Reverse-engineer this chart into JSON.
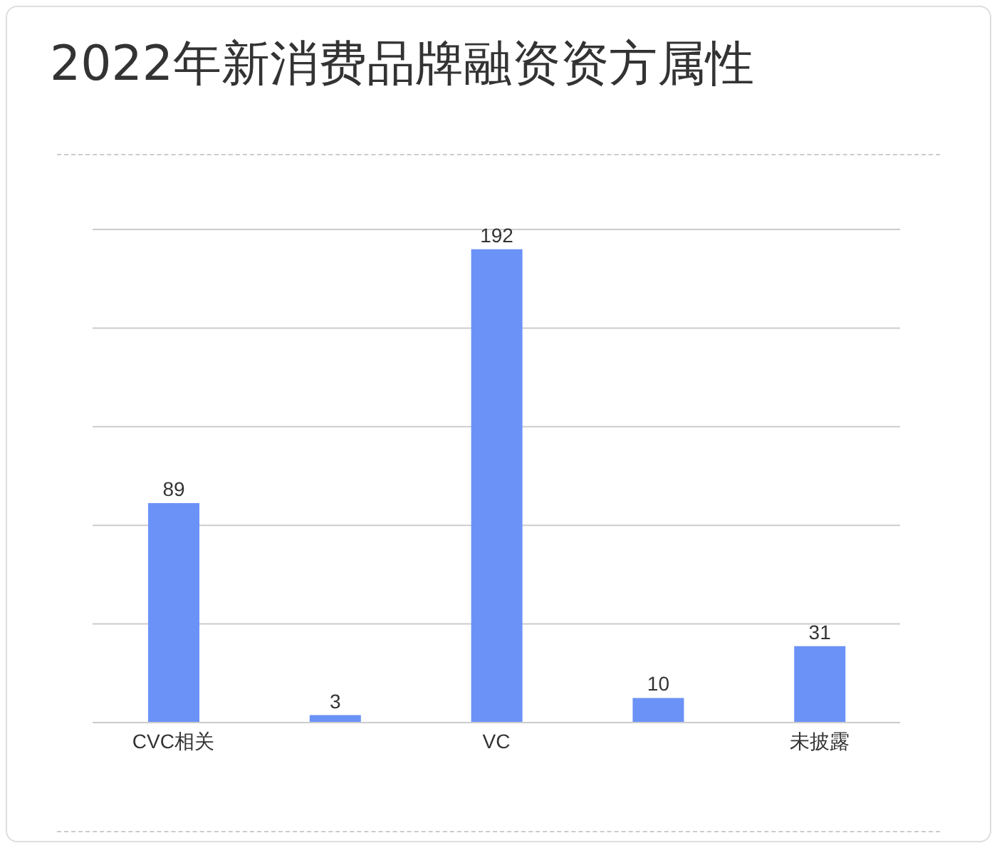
{
  "chart_data": {
    "type": "bar",
    "title": "2022年新消费品牌融资资方属性",
    "categories": [
      "CVC相关",
      null,
      "VC",
      null,
      "未披露"
    ],
    "values": [
      89,
      3,
      192,
      10,
      31
    ],
    "color": "#6b92f7",
    "grid": "y",
    "tick_labels": "x",
    "data_labels": true
  }
}
